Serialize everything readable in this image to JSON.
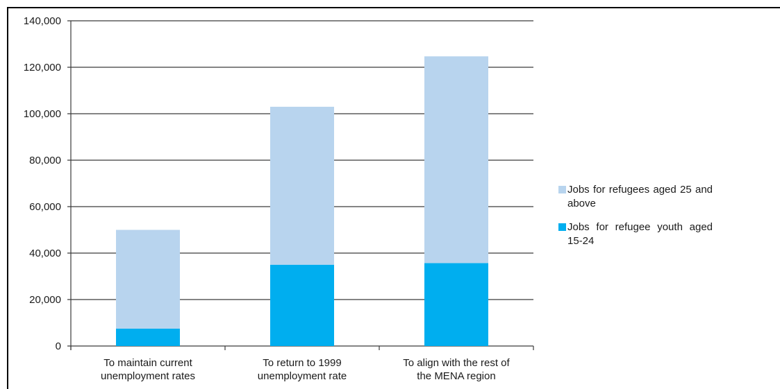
{
  "chart_data": {
    "type": "bar",
    "stacked": true,
    "categories": [
      [
        "To maintain current",
        "unemployment rates"
      ],
      [
        "To return to 1999",
        "unemployment rate"
      ],
      [
        "To align with the rest of",
        "the MENA region"
      ]
    ],
    "series": [
      {
        "name": "Jobs for refugee youth aged 15-24",
        "color": "#00aeef",
        "values": [
          7500,
          35000,
          35700
        ]
      },
      {
        "name": "Jobs for refugees aged 25 and above",
        "color": "#b8d4ee",
        "values": [
          42500,
          68000,
          89000
        ]
      }
    ],
    "ylim": [
      0,
      140000
    ],
    "yticks": [
      "0",
      "20,000",
      "40,000",
      "60,000",
      "80,000",
      "100,000",
      "120,000",
      "140,000"
    ],
    "grid": true,
    "legend_position": "right"
  },
  "legend": {
    "items": [
      {
        "label": "Jobs for refugees aged 25 and above",
        "color": "#b8d4ee"
      },
      {
        "label": "Jobs for refugee youth aged 15-24",
        "color": "#00aeef"
      }
    ]
  }
}
